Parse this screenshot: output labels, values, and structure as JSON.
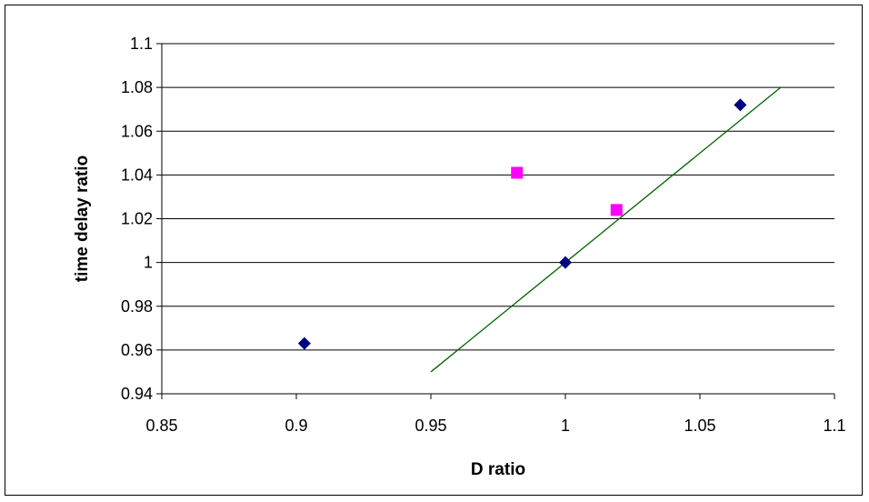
{
  "chart_data": {
    "type": "scatter",
    "title": "",
    "xlabel": "D ratio",
    "ylabel": "time delay ratio",
    "xlim": [
      0.85,
      1.1
    ],
    "ylim": [
      0.94,
      1.1
    ],
    "x_ticks": [
      "0.85",
      "0.9",
      "0.95",
      "1",
      "1.05",
      "1.1"
    ],
    "y_ticks": [
      "0.94",
      "0.96",
      "0.98",
      "1",
      "1.02",
      "1.04",
      "1.06",
      "1.08",
      "1.1"
    ],
    "grid": "horizontal",
    "legend": "none",
    "series": [
      {
        "marker": "diamond",
        "color": "#000080",
        "points": [
          {
            "x": 0.903,
            "y": 0.963
          },
          {
            "x": 1.0,
            "y": 1.0
          },
          {
            "x": 1.065,
            "y": 1.072
          }
        ]
      },
      {
        "marker": "square",
        "color": "#ff00ff",
        "points": [
          {
            "x": 0.982,
            "y": 1.041
          },
          {
            "x": 1.019,
            "y": 1.024
          }
        ]
      }
    ],
    "reference_line": {
      "color": "#006400",
      "points": [
        {
          "x": 0.95,
          "y": 0.95
        },
        {
          "x": 1.08,
          "y": 1.08
        }
      ]
    }
  }
}
